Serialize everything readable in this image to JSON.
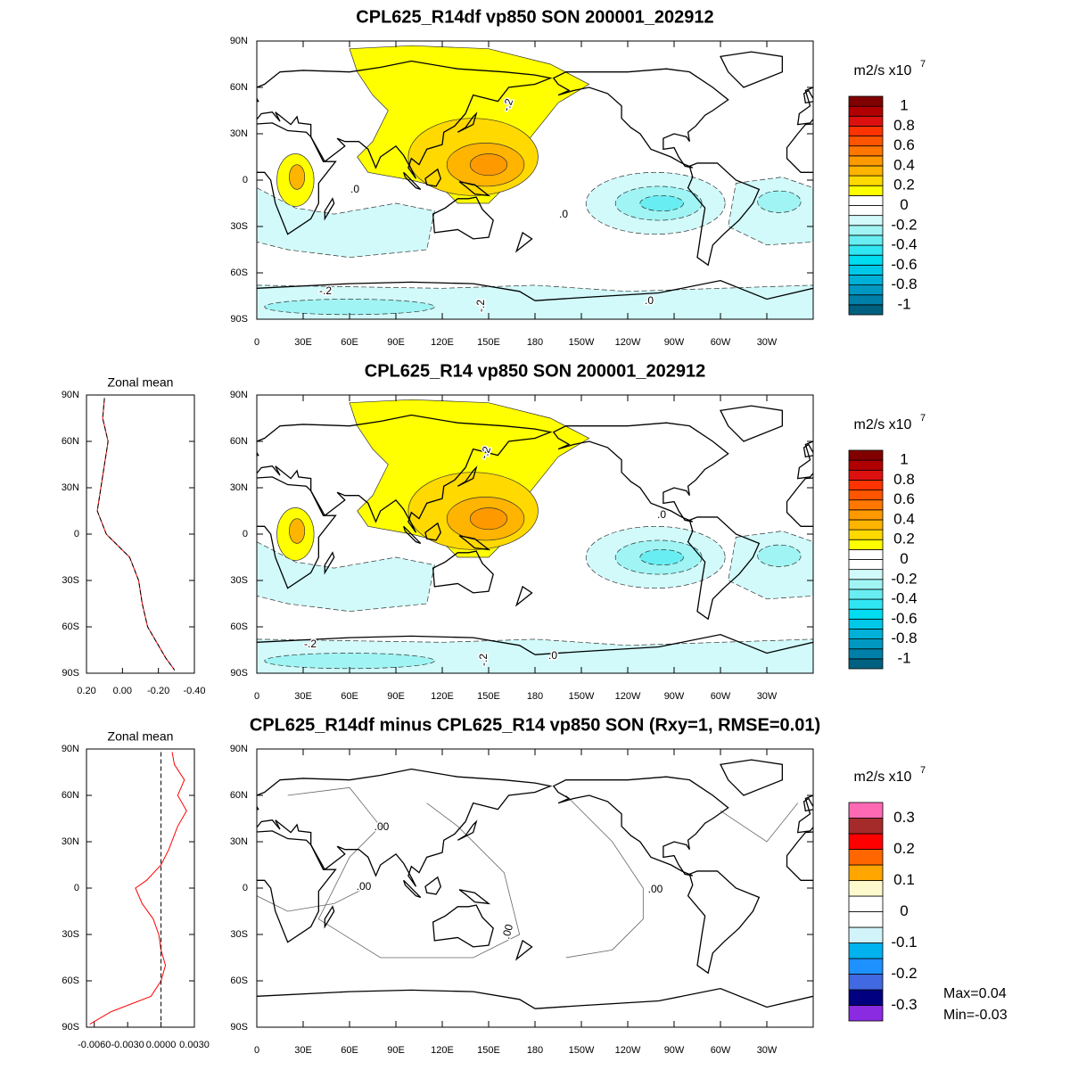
{
  "chart_data": [
    {
      "type": "contour_map",
      "title": "CPL625_R14df vp850 SON 200001_202912",
      "xlim": [
        0,
        360
      ],
      "ylim": [
        -90,
        90
      ],
      "xticks": [
        0,
        {
          "value": 30,
          "label": "30E"
        },
        {
          "value": 60,
          "label": "60E"
        },
        {
          "value": 90,
          "label": "90E"
        },
        {
          "value": 120,
          "label": "120E"
        },
        {
          "value": 150,
          "label": "150E"
        },
        {
          "value": 180,
          "label": "180"
        },
        {
          "value": 210,
          "label": "150W"
        },
        {
          "value": 240,
          "label": "120W"
        },
        {
          "value": 270,
          "label": "90W"
        },
        {
          "value": 300,
          "label": "60W"
        },
        {
          "value": 330,
          "label": "30W"
        }
      ],
      "yticks": [
        {
          "value": 90,
          "label": "90N"
        },
        {
          "value": 60,
          "label": "60N"
        },
        {
          "value": 30,
          "label": "30N"
        },
        0,
        {
          "value": -30,
          "label": "30S"
        },
        {
          "value": -60,
          "label": "60S"
        },
        {
          "value": -90,
          "label": "90S"
        }
      ],
      "contour_labels": [
        "-.2",
        ".0",
        ".0",
        "-.2",
        "-.2",
        ".0"
      ],
      "colorbar": {
        "title": "m2/s x10",
        "title_exponent": "7",
        "levels": [
          -1,
          -0.9,
          -0.8,
          -0.7,
          -0.6,
          -0.5,
          -0.4,
          -0.3,
          -0.2,
          -0.1,
          0,
          0.1,
          0.2,
          0.3,
          0.4,
          0.5,
          0.6,
          0.7,
          0.8,
          0.9,
          1
        ],
        "colors": [
          "#00607f",
          "#0080a8",
          "#0098c0",
          "#00b0d8",
          "#00c8e8",
          "#00dcf0",
          "#30e6f2",
          "#68eef2",
          "#a0f4f4",
          "#d2fafa",
          "#ffffff",
          "#ffffff",
          "#ffff00",
          "#ffd900",
          "#ffb400",
          "#ff9900",
          "#ff7700",
          "#ff5500",
          "#ff3300",
          "#dd1010",
          "#b00000",
          "#800000"
        ],
        "ticks": [
          1,
          0.8,
          0.6,
          0.4,
          0.2,
          0,
          -0.2,
          -0.4,
          -0.6,
          -0.8,
          -1
        ]
      }
    },
    {
      "type": "contour_map",
      "title": "CPL625_R14 vp850 SON 200001_202912",
      "xlim": [
        0,
        360
      ],
      "ylim": [
        -90,
        90
      ],
      "xticks": [
        0,
        {
          "value": 30,
          "label": "30E"
        },
        {
          "value": 60,
          "label": "60E"
        },
        {
          "value": 90,
          "label": "90E"
        },
        {
          "value": 120,
          "label": "120E"
        },
        {
          "value": 150,
          "label": "150E"
        },
        {
          "value": 180,
          "label": "180"
        },
        {
          "value": 210,
          "label": "150W"
        },
        {
          "value": 240,
          "label": "120W"
        },
        {
          "value": 270,
          "label": "90W"
        },
        {
          "value": 300,
          "label": "60W"
        },
        {
          "value": 330,
          "label": "30W"
        }
      ],
      "yticks": [
        {
          "value": 90,
          "label": "90N"
        },
        {
          "value": 60,
          "label": "60N"
        },
        {
          "value": 30,
          "label": "30N"
        },
        0,
        {
          "value": -30,
          "label": "30S"
        },
        {
          "value": -60,
          "label": "60S"
        },
        {
          "value": -90,
          "label": "90S"
        }
      ],
      "contour_labels": [
        "-.2",
        ".0",
        "-.2",
        "-.2",
        ".0"
      ],
      "colorbar": {
        "title": "m2/s x10",
        "title_exponent": "7",
        "levels": [
          -1,
          -0.9,
          -0.8,
          -0.7,
          -0.6,
          -0.5,
          -0.4,
          -0.3,
          -0.2,
          -0.1,
          0,
          0.1,
          0.2,
          0.3,
          0.4,
          0.5,
          0.6,
          0.7,
          0.8,
          0.9,
          1
        ],
        "colors": [
          "#00607f",
          "#0080a8",
          "#0098c0",
          "#00b0d8",
          "#00c8e8",
          "#00dcf0",
          "#30e6f2",
          "#68eef2",
          "#a0f4f4",
          "#d2fafa",
          "#ffffff",
          "#ffffff",
          "#ffff00",
          "#ffd900",
          "#ffb400",
          "#ff9900",
          "#ff7700",
          "#ff5500",
          "#ff3300",
          "#dd1010",
          "#b00000",
          "#800000"
        ],
        "ticks": [
          1,
          0.8,
          0.6,
          0.4,
          0.2,
          0,
          -0.2,
          -0.4,
          -0.6,
          -0.8,
          -1
        ]
      }
    },
    {
      "type": "contour_map",
      "title": "CPL625_R14df minus CPL625_R14 vp850 SON (Rxy=1, RMSE=0.01)",
      "xlim": [
        0,
        360
      ],
      "ylim": [
        -90,
        90
      ],
      "xticks": [
        0,
        {
          "value": 30,
          "label": "30E"
        },
        {
          "value": 60,
          "label": "60E"
        },
        {
          "value": 90,
          "label": "90E"
        },
        {
          "value": 120,
          "label": "120E"
        },
        {
          "value": 150,
          "label": "150E"
        },
        {
          "value": 180,
          "label": "180"
        },
        {
          "value": 210,
          "label": "150W"
        },
        {
          "value": 240,
          "label": "120W"
        },
        {
          "value": 270,
          "label": "90W"
        },
        {
          "value": 300,
          "label": "60W"
        },
        {
          "value": 330,
          "label": "30W"
        }
      ],
      "yticks": [
        {
          "value": 90,
          "label": "90N"
        },
        {
          "value": 60,
          "label": "60N"
        },
        {
          "value": 30,
          "label": "30N"
        },
        0,
        {
          "value": -30,
          "label": "30S"
        },
        {
          "value": -60,
          "label": "60S"
        },
        {
          "value": -90,
          "label": "90S"
        }
      ],
      "contour_labels": [
        ".00",
        ".00",
        ".00",
        ".00"
      ],
      "annotations": [
        "Max=0.04",
        "Min=-0.03"
      ],
      "colorbar": {
        "title": "m2/s x10",
        "title_exponent": "7",
        "levels": [
          -0.3,
          -0.25,
          -0.2,
          -0.15,
          -0.1,
          -0.05,
          0,
          0.05,
          0.1,
          0.15,
          0.2,
          0.25,
          0.3
        ],
        "colors": [
          "#8a2be2",
          "#000080",
          "#4169e1",
          "#1e90ff",
          "#00b2ee",
          "#d0f4fa",
          "#ffffff",
          "#ffffff",
          "#fffacd",
          "#ffa500",
          "#ff6600",
          "#ff0000",
          "#a52a2a",
          "#ff69b4"
        ],
        "ticks": [
          0.3,
          0.2,
          0.1,
          0,
          -0.1,
          -0.2,
          -0.3
        ]
      }
    },
    {
      "type": "line",
      "title": "Zonal mean",
      "xlim": [
        0.2,
        -0.4
      ],
      "ylim": [
        -90,
        90
      ],
      "xticks": [
        {
          "value": 0.2,
          "label": "0.20"
        },
        {
          "value": 0,
          "label": "0.00"
        },
        {
          "value": -0.2,
          "label": "-0.20"
        },
        {
          "value": -0.4,
          "label": "-0.40"
        }
      ],
      "yticks": [
        {
          "value": 90,
          "label": "90N"
        },
        {
          "value": 60,
          "label": "60N"
        },
        {
          "value": 30,
          "label": "30N"
        },
        0,
        {
          "value": -30,
          "label": "30S"
        },
        {
          "value": -60,
          "label": "60S"
        },
        {
          "value": -90,
          "label": "90S"
        }
      ],
      "y": [
        88,
        75,
        60,
        45,
        30,
        15,
        0,
        -15,
        -30,
        -45,
        -60,
        -70,
        -80,
        -88
      ],
      "series": [
        {
          "color": "#ff0000",
          "dash": false,
          "values": [
            0.1,
            0.11,
            0.08,
            0.1,
            0.12,
            0.14,
            0.09,
            -0.04,
            -0.09,
            -0.11,
            -0.14,
            -0.19,
            -0.24,
            -0.29
          ]
        },
        {
          "color": "#000000",
          "dash": true,
          "values": [
            0.1,
            0.11,
            0.08,
            0.1,
            0.12,
            0.14,
            0.09,
            -0.04,
            -0.09,
            -0.11,
            -0.14,
            -0.19,
            -0.24,
            -0.29
          ]
        }
      ]
    },
    {
      "type": "line",
      "title": "Zonal mean",
      "xlim": [
        -0.0067,
        0.003
      ],
      "ylim": [
        -90,
        90
      ],
      "xticks": [
        {
          "value": -0.006,
          "label": "-0.0060"
        },
        {
          "value": -0.003,
          "label": "-0.0030"
        },
        {
          "value": 0,
          "label": "0.0000"
        },
        {
          "value": 0.003,
          "label": "0.0030"
        }
      ],
      "yticks": [
        {
          "value": 90,
          "label": "90N"
        },
        {
          "value": 60,
          "label": "60N"
        },
        {
          "value": 30,
          "label": "30N"
        },
        0,
        {
          "value": -30,
          "label": "30S"
        },
        {
          "value": -60,
          "label": "60S"
        },
        {
          "value": -90,
          "label": "90S"
        }
      ],
      "y": [
        88,
        80,
        70,
        60,
        50,
        40,
        25,
        15,
        5,
        0,
        -10,
        -20,
        -30,
        -40,
        -50,
        -60,
        -70,
        -80,
        -88
      ],
      "series": [
        {
          "color": "#ff0000",
          "dash": false,
          "values": [
            0.001,
            0.0012,
            0.0021,
            0.0015,
            0.0023,
            0.0015,
            0.0007,
            0,
            -0.0013,
            -0.0023,
            -0.0017,
            -0.0007,
            -0.0002,
            0,
            0.0004,
            0,
            -0.0009,
            -0.0045,
            -0.0064
          ]
        },
        {
          "color": "#000000",
          "dash": true,
          "values": [
            0,
            0,
            0,
            0,
            0,
            0,
            0,
            0,
            0,
            0,
            0,
            0,
            0,
            0,
            0,
            0,
            0,
            0,
            0
          ]
        }
      ]
    }
  ]
}
